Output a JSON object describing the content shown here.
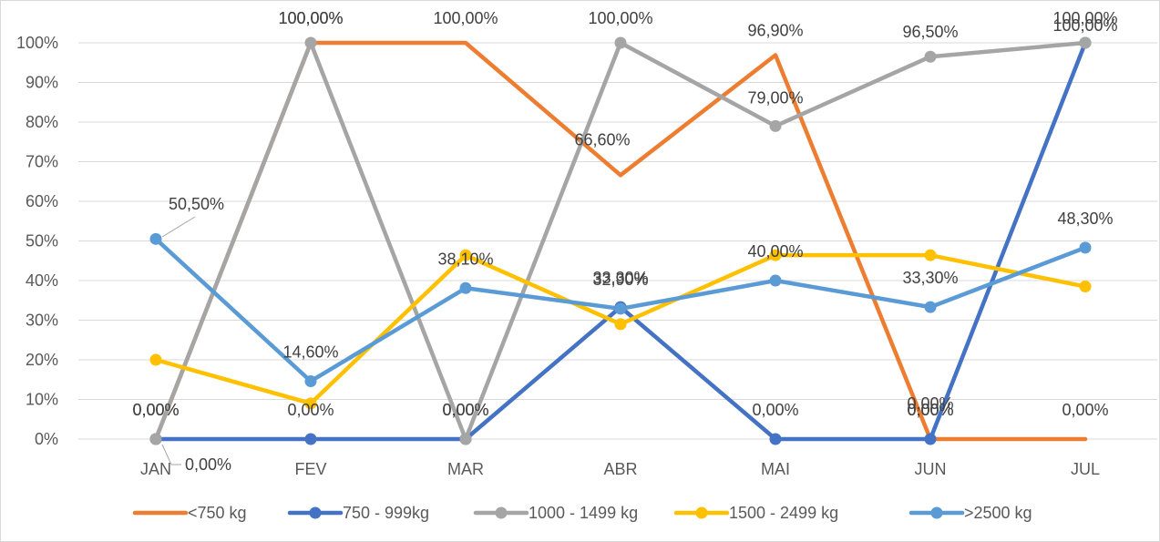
{
  "chart_data": {
    "type": "line",
    "categories": [
      "JAN",
      "FEV",
      "MAR",
      "ABR",
      "MAI",
      "JUN",
      "JUL"
    ],
    "y_ticks": [
      "0%",
      "10%",
      "20%",
      "30%",
      "40%",
      "50%",
      "60%",
      "70%",
      "80%",
      "90%",
      "100%"
    ],
    "ylim": [
      0,
      100
    ],
    "grid": true,
    "legend_position": "bottom",
    "series": [
      {
        "name": "<750 kg",
        "color": "#ED7D31",
        "values": [
          0,
          100,
          100,
          66.6,
          96.9,
          0,
          0
        ],
        "show_first_marker": true,
        "show_other_markers": false,
        "labels": [
          "0,00%",
          "100,00%",
          "100,00%",
          "66,60%",
          "96,90%",
          "0,00%",
          "0,00%"
        ]
      },
      {
        "name": "750 - 999kg",
        "color": "#4472C4",
        "values": [
          0,
          0,
          0,
          33.3,
          0,
          0,
          100
        ],
        "show_first_marker": true,
        "show_other_markers": true,
        "labels": [
          "0,00%",
          "0,00%",
          "0,00%",
          "33,30%",
          "0,00%",
          "0,00%",
          "100,00%"
        ]
      },
      {
        "name": "1000 - 1499 kg",
        "color": "#A5A5A5",
        "values": [
          0,
          100,
          0,
          100,
          79,
          96.5,
          100
        ],
        "show_first_marker": true,
        "show_other_markers": true,
        "labels": [
          "0,00%",
          "100,00%",
          "0,00%",
          "100,00%",
          "79,00%",
          "96,50%",
          "100,00%"
        ]
      },
      {
        "name": "1500 - 2499 kg",
        "color": "#FFC000",
        "values": [
          20,
          9,
          46.4,
          29,
          46.4,
          46.4,
          38.5
        ],
        "show_first_marker": true,
        "show_other_markers": true,
        "labels": [
          "",
          "",
          "",
          "",
          "",
          "",
          ""
        ]
      },
      {
        "name": ">2500 kg",
        "color": "#5B9BD5",
        "values": [
          50.5,
          14.6,
          38.1,
          32.9,
          40,
          33.3,
          48.3
        ],
        "show_first_marker": true,
        "show_other_markers": true,
        "labels": [
          "50,50%",
          "14,60%",
          "38,10%",
          "32,90%",
          "40,00%",
          "33,30%",
          "48,30%"
        ]
      }
    ]
  }
}
